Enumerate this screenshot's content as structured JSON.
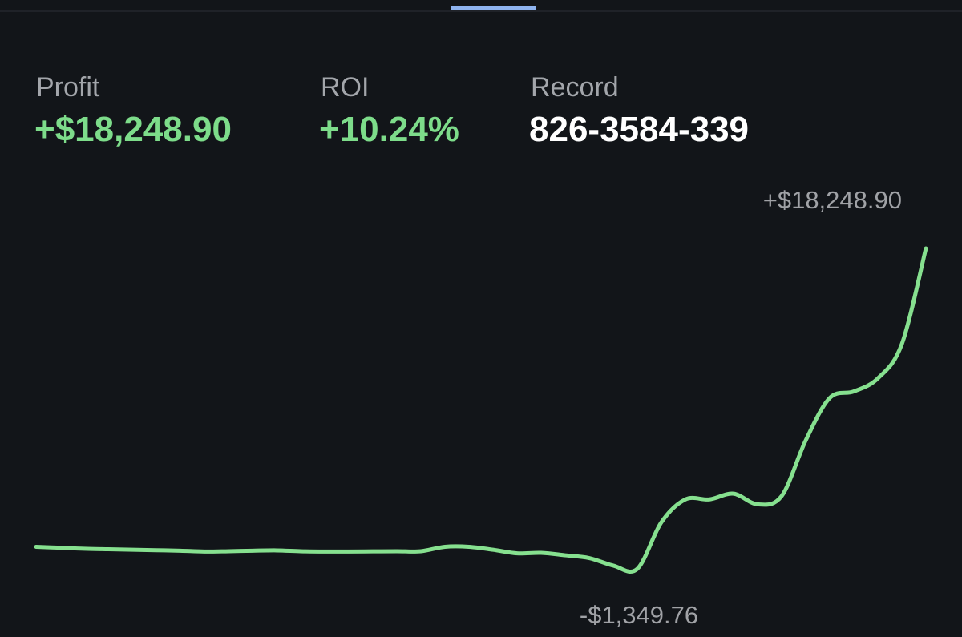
{
  "stats": [
    {
      "label": "Profit",
      "value": "+$18,248.90"
    },
    {
      "label": "ROI",
      "value": "+10.24%"
    },
    {
      "label": "Record",
      "value": "826-3584-339"
    }
  ],
  "chart_data": {
    "type": "line",
    "color": "#86e08f",
    "values": [
      0,
      -60,
      -120,
      -150,
      -180,
      -210,
      -240,
      -290,
      -270,
      -240,
      -220,
      -270,
      -290,
      -290,
      -280,
      -270,
      -270,
      0,
      0,
      -180,
      -400,
      -370,
      -520,
      -690,
      -1150,
      -1349.76,
      1500,
      2900,
      2900,
      3250,
      2600,
      3100,
      6500,
      9100,
      9500,
      10300,
      12400,
      18248.9
    ],
    "annotations": [
      {
        "value": 18248.9,
        "label": "+$18,248.90"
      },
      {
        "value": -1349.76,
        "label": "-$1,349.76"
      }
    ]
  }
}
